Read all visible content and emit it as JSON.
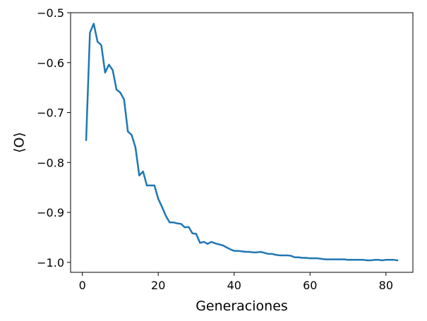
{
  "chart_data": {
    "type": "line",
    "xlabel": "Generaciones",
    "ylabel": "⟨O⟩",
    "xlim": [
      -3.1,
      87.1
    ],
    "ylim": [
      -1.02,
      -0.5
    ],
    "xticks": [
      0,
      20,
      40,
      60,
      80
    ],
    "yticks": [
      -1.0,
      -0.9,
      -0.8,
      -0.7,
      -0.6,
      -0.5
    ],
    "xtick_labels": [
      "0",
      "20",
      "40",
      "60",
      "80"
    ],
    "ytick_labels": [
      "−1.0",
      "−0.9",
      "−0.8",
      "−0.7",
      "−0.6",
      "−0.5"
    ],
    "grid": false,
    "line_color": "#1f77b4",
    "series": [
      {
        "x": [
          1,
          2,
          3,
          4,
          5,
          6,
          7,
          8,
          9,
          10,
          11,
          12,
          13,
          14,
          15,
          16,
          17,
          18,
          19,
          20,
          21,
          22,
          23,
          24,
          25,
          26,
          27,
          28,
          29,
          30,
          31,
          32,
          33,
          34,
          35,
          36,
          37,
          38,
          39,
          40,
          41,
          42,
          43,
          44,
          45,
          46,
          47,
          48,
          49,
          50,
          51,
          52,
          53,
          54,
          55,
          56,
          57,
          58,
          59,
          60,
          61,
          62,
          63,
          64,
          65,
          66,
          67,
          68,
          69,
          70,
          71,
          72,
          73,
          74,
          75,
          76,
          77,
          78,
          79,
          80,
          81,
          82,
          83
        ],
        "values": [
          -0.755,
          -0.54,
          -0.522,
          -0.558,
          -0.565,
          -0.62,
          -0.604,
          -0.615,
          -0.654,
          -0.66,
          -0.674,
          -0.738,
          -0.745,
          -0.77,
          -0.826,
          -0.818,
          -0.846,
          -0.846,
          -0.846,
          -0.873,
          -0.889,
          -0.907,
          -0.92,
          -0.92,
          -0.922,
          -0.923,
          -0.93,
          -0.929,
          -0.942,
          -0.943,
          -0.961,
          -0.959,
          -0.963,
          -0.959,
          -0.962,
          -0.964,
          -0.966,
          -0.97,
          -0.974,
          -0.977,
          -0.977,
          -0.978,
          -0.979,
          -0.979,
          -0.98,
          -0.98,
          -0.979,
          -0.981,
          -0.983,
          -0.983,
          -0.985,
          -0.986,
          -0.986,
          -0.986,
          -0.987,
          -0.99,
          -0.99,
          -0.991,
          -0.991,
          -0.992,
          -0.992,
          -0.992,
          -0.993,
          -0.994,
          -0.994,
          -0.994,
          -0.994,
          -0.994,
          -0.994,
          -0.995,
          -0.995,
          -0.995,
          -0.995,
          -0.995,
          -0.996,
          -0.996,
          -0.995,
          -0.995,
          -0.996,
          -0.995,
          -0.995,
          -0.995,
          -0.996
        ]
      }
    ]
  }
}
